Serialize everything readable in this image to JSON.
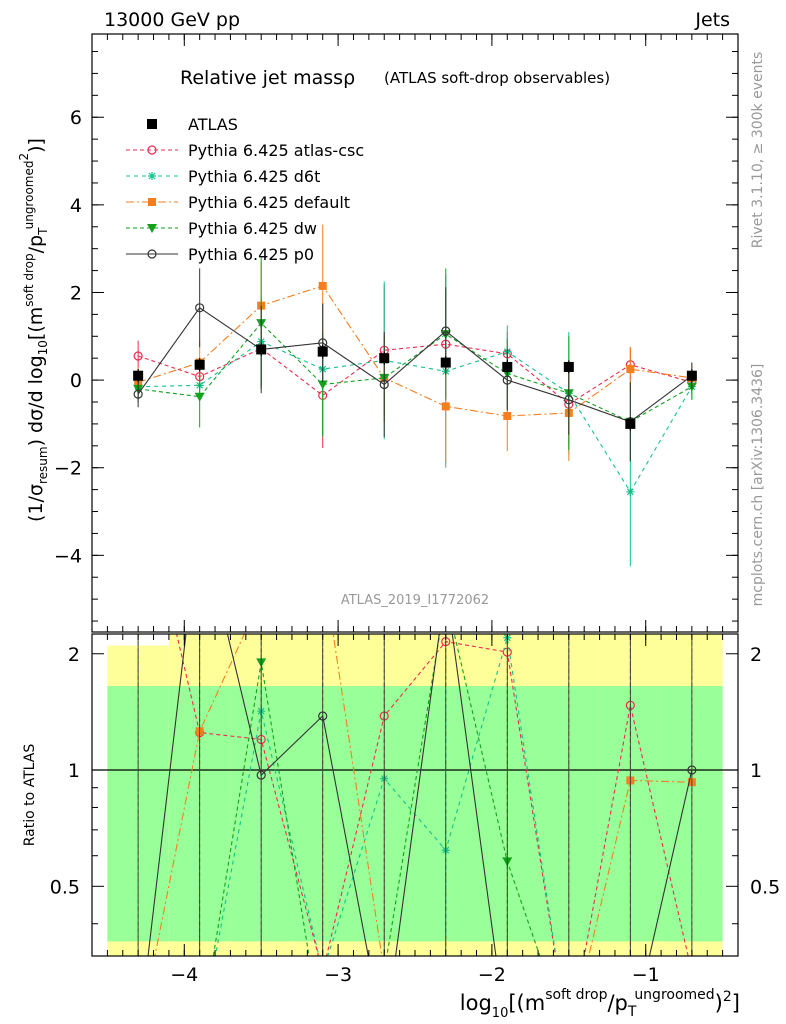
{
  "header": {
    "energy_label": "13000 GeV pp",
    "process_label": "Jets"
  },
  "side_labels": {
    "generator_info": "Rivet 3.1.10, ≥ 300k events",
    "reference": "mcplots.cern.ch [arXiv:1306.3436]"
  },
  "chart_data": {
    "type": "line",
    "title": "Relative jet massρ",
    "subtitle": "(ATLAS soft-drop observables)",
    "analysis_id": "ATLAS_2019_I1772062",
    "ylabel_prefix": "(1/σ",
    "ylabel_sub": "resum",
    "ylabel_mid": ") dσ/d log",
    "ylabel_sub2": "10",
    "ylabel_tail": "[(m",
    "ylabel_sup_sd": "soft drop",
    "ylabel_slash": "/p",
    "ylabel_sub_t": "T",
    "ylabel_sup_ug": "ungroomed",
    "ylabel_sq": "2",
    "ylabel_close": ")]",
    "xlabel_prefix": "log",
    "xlabel_sub": "10",
    "xlabel_open": "[(m",
    "xlabel_sup_sd": "soft drop",
    "xlabel_slash": "/p",
    "xlabel_sub_t": "T",
    "xlabel_sup_ug": "ungroomed",
    "xlabel_close": ")",
    "xlabel_sq": "2",
    "xlabel_end": "]",
    "ratio_ylabel": "Ratio to ATLAS",
    "xlim": [
      -4.6,
      -0.4
    ],
    "ylim_main": [
      -5.75,
      7.9
    ],
    "ylim_ratio": [
      0.33,
      2.25
    ],
    "ratio_log_scale": true,
    "x_ticks": [
      "−4",
      "−3",
      "−2",
      "−1"
    ],
    "x_tick_values": [
      -4,
      -3,
      -2,
      -1
    ],
    "y_ticks_main": [
      "−4",
      "−2",
      "0",
      "2",
      "4",
      "6"
    ],
    "y_tick_values_main": [
      -4,
      -2,
      0,
      2,
      4,
      6
    ],
    "y_ticks_ratio": [
      "0.5",
      "1",
      "2"
    ],
    "y_tick_values_ratio": [
      0.5,
      1,
      2
    ],
    "legend_position": "top-left",
    "bin_edges": [
      -4.5,
      -4.1,
      -3.7,
      -3.3,
      -2.9,
      -2.5,
      -2.1,
      -1.7,
      -1.3,
      -0.9,
      -0.5
    ],
    "data": {
      "name": "ATLAS",
      "color": "#000000",
      "x": [
        -4.3,
        -3.9,
        -3.5,
        -3.1,
        -2.7,
        -2.3,
        -1.9,
        -1.5,
        -1.1,
        -0.7
      ],
      "y": [
        0.1,
        0.35,
        0.7,
        0.65,
        0.5,
        0.4,
        0.3,
        0.3,
        -1.0,
        0.1
      ],
      "err": [
        0.15,
        0.15,
        0.15,
        0.15,
        0.15,
        0.15,
        0.15,
        0.15,
        0.15,
        0.15
      ],
      "band_inner": [
        [
          0.36,
          1.65
        ],
        [
          0.36,
          1.65
        ],
        [
          0.36,
          1.65
        ],
        [
          0.36,
          1.65
        ],
        [
          0.36,
          1.65
        ],
        [
          0.36,
          1.65
        ],
        [
          0.36,
          1.65
        ],
        [
          0.36,
          1.65
        ],
        [
          0.36,
          1.65
        ],
        [
          0.36,
          1.65
        ]
      ],
      "band_outer": [
        [
          0.33,
          2.1
        ],
        [
          0.33,
          2.3
        ],
        [
          0.33,
          2.3
        ],
        [
          0.33,
          2.3
        ],
        [
          0.33,
          2.3
        ],
        [
          0.33,
          2.3
        ],
        [
          0.33,
          2.3
        ],
        [
          0.33,
          2.3
        ],
        [
          0.33,
          2.3
        ],
        [
          0.33,
          2.3
        ]
      ]
    },
    "series": [
      {
        "name": "Pythia 6.425 atlas-csc",
        "color": "#ee2b4f",
        "dash": "4,3",
        "marker": "open-circle",
        "y": [
          0.55,
          0.08,
          0.72,
          -0.35,
          0.68,
          0.82,
          0.6,
          -0.55,
          0.35,
          -0.05
        ],
        "err": [
          0.35,
          0.25,
          0.9,
          1.2,
          1.5,
          1.2,
          0.5,
          0.9,
          0.4,
          0.3
        ],
        "ratio": [
          6.0,
          1.25,
          1.2,
          0.3,
          1.38,
          2.15,
          2.02,
          0.2,
          1.47,
          0.3
        ]
      },
      {
        "name": "Pythia 6.425 d6t",
        "color": "#11c38b",
        "dash": "4,4",
        "marker": "star",
        "y": [
          -0.15,
          -0.12,
          0.88,
          0.25,
          0.45,
          0.2,
          0.65,
          -0.3,
          -2.55,
          -0.15
        ],
        "err": [
          0.3,
          0.3,
          1.0,
          1.5,
          1.8,
          2.2,
          0.6,
          1.4,
          1.7,
          0.3
        ],
        "ratio": [
          0.2,
          0.2,
          1.42,
          0.3,
          0.95,
          0.62,
          2.2,
          0.2,
          0.2,
          0.2
        ]
      },
      {
        "name": "Pythia 6.425 default",
        "color": "#f57f20",
        "dash": "8,3,2,3",
        "marker": "filled-square",
        "y": [
          -0.05,
          0.4,
          1.7,
          2.15,
          0.05,
          -0.6,
          -0.82,
          -0.75,
          0.25,
          0.05
        ],
        "err": [
          0.35,
          0.5,
          1.0,
          1.4,
          1.0,
          1.3,
          0.8,
          1.1,
          0.5,
          0.35
        ],
        "ratio": [
          0.2,
          1.26,
          2.8,
          3.4,
          0.3,
          0.2,
          0.2,
          0.2,
          0.94,
          0.93
        ]
      },
      {
        "name": "Pythia 6.425 dw",
        "color": "#12a21c",
        "dash": "4,3",
        "marker": "triangle-down",
        "y": [
          -0.2,
          -0.38,
          1.3,
          -0.1,
          0.05,
          1.05,
          0.15,
          -0.3,
          -0.95,
          -0.15
        ],
        "err": [
          0.3,
          0.7,
          1.5,
          1.2,
          1.0,
          1.5,
          0.8,
          1.3,
          0.9,
          0.3
        ],
        "ratio": [
          0.2,
          0.2,
          1.9,
          0.2,
          0.3,
          2.8,
          0.58,
          0.2,
          0.2,
          0.2
        ]
      },
      {
        "name": "Pythia 6.425 p0",
        "color": "#333333",
        "dash": "",
        "marker": "open-circle",
        "y": [
          -0.32,
          1.65,
          0.7,
          0.85,
          -0.1,
          1.12,
          0.0,
          -0.45,
          -0.95,
          0.1
        ],
        "err": [
          0.3,
          0.9,
          1.0,
          0.9,
          1.2,
          1.0,
          0.7,
          0.8,
          0.9,
          0.3
        ],
        "ratio": [
          0.2,
          4.5,
          0.97,
          1.38,
          0.2,
          3.0,
          0.2,
          0.2,
          0.2,
          1.0
        ]
      }
    ]
  }
}
